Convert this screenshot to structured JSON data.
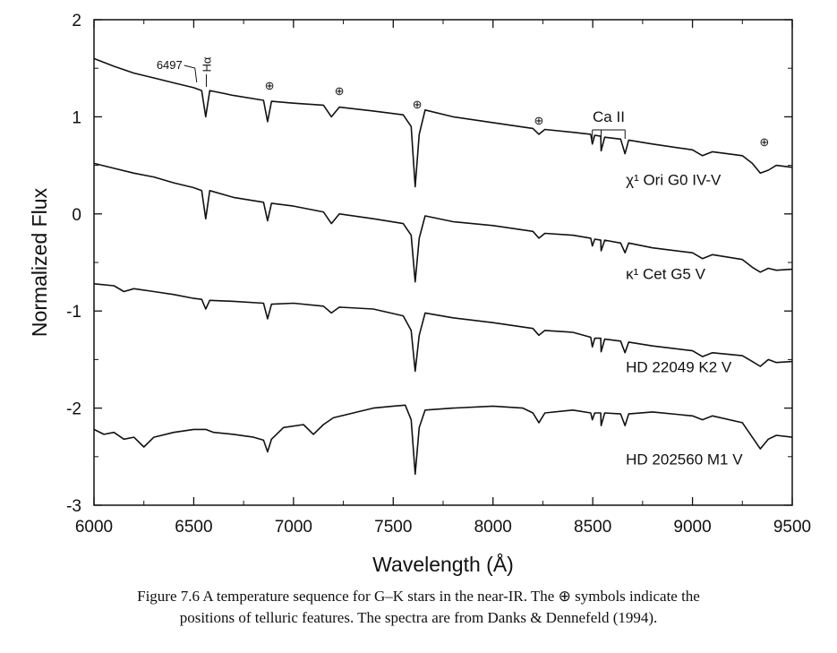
{
  "chart_data": {
    "type": "line",
    "xlabel": "Wavelength (Å)",
    "ylabel": "Normalized Flux",
    "xlim": [
      6000,
      9500
    ],
    "ylim": [
      -3,
      2
    ],
    "xticks": [
      "6000",
      "6500",
      "7000",
      "7500",
      "8000",
      "8500",
      "9000",
      "9500"
    ],
    "yticks": [
      "-3",
      "-2",
      "-1",
      "0",
      "1",
      "2"
    ],
    "grid": false,
    "legend": "none",
    "series": [
      {
        "name": "χ1 Ori  G0 IV-V",
        "label": "χ¹ Ori  G0 IV-V",
        "label_x": 8500,
        "label_y": 0.3,
        "points": [
          [
            6000,
            1.6
          ],
          [
            6100,
            1.52
          ],
          [
            6200,
            1.45
          ],
          [
            6300,
            1.4
          ],
          [
            6400,
            1.35
          ],
          [
            6500,
            1.3
          ],
          [
            6540,
            1.27
          ],
          [
            6560,
            1.0
          ],
          [
            6580,
            1.27
          ],
          [
            6700,
            1.22
          ],
          [
            6850,
            1.17
          ],
          [
            6870,
            0.95
          ],
          [
            6890,
            1.16
          ],
          [
            7000,
            1.14
          ],
          [
            7150,
            1.12
          ],
          [
            7190,
            1.0
          ],
          [
            7230,
            1.1
          ],
          [
            7400,
            1.06
          ],
          [
            7550,
            1.02
          ],
          [
            7590,
            0.9
          ],
          [
            7610,
            0.28
          ],
          [
            7630,
            0.82
          ],
          [
            7660,
            1.07
          ],
          [
            7800,
            1.0
          ],
          [
            8000,
            0.94
          ],
          [
            8200,
            0.88
          ],
          [
            8230,
            0.82
          ],
          [
            8260,
            0.87
          ],
          [
            8400,
            0.84
          ],
          [
            8490,
            0.82
          ],
          [
            8498,
            0.72
          ],
          [
            8510,
            0.81
          ],
          [
            8540,
            0.8
          ],
          [
            8542,
            0.65
          ],
          [
            8560,
            0.79
          ],
          [
            8640,
            0.77
          ],
          [
            8662,
            0.62
          ],
          [
            8680,
            0.76
          ],
          [
            8800,
            0.72
          ],
          [
            9000,
            0.66
          ],
          [
            9050,
            0.6
          ],
          [
            9100,
            0.64
          ],
          [
            9250,
            0.6
          ],
          [
            9300,
            0.52
          ],
          [
            9340,
            0.42
          ],
          [
            9380,
            0.45
          ],
          [
            9420,
            0.5
          ],
          [
            9500,
            0.48
          ]
        ]
      },
      {
        "name": "κ1 Cet  G5 V",
        "label": "κ¹ Cet  G5 V",
        "label_x": 8500,
        "label_y": -0.67,
        "points": [
          [
            6000,
            0.52
          ],
          [
            6100,
            0.47
          ],
          [
            6200,
            0.42
          ],
          [
            6300,
            0.38
          ],
          [
            6400,
            0.32
          ],
          [
            6500,
            0.27
          ],
          [
            6540,
            0.24
          ],
          [
            6560,
            -0.05
          ],
          [
            6580,
            0.24
          ],
          [
            6700,
            0.17
          ],
          [
            6850,
            0.12
          ],
          [
            6870,
            -0.07
          ],
          [
            6890,
            0.11
          ],
          [
            7000,
            0.08
          ],
          [
            7150,
            0.02
          ],
          [
            7190,
            -0.1
          ],
          [
            7230,
            0.0
          ],
          [
            7400,
            -0.05
          ],
          [
            7550,
            -0.1
          ],
          [
            7590,
            -0.22
          ],
          [
            7610,
            -0.7
          ],
          [
            7630,
            -0.25
          ],
          [
            7660,
            -0.02
          ],
          [
            7800,
            -0.08
          ],
          [
            8000,
            -0.12
          ],
          [
            8200,
            -0.18
          ],
          [
            8230,
            -0.25
          ],
          [
            8260,
            -0.2
          ],
          [
            8400,
            -0.22
          ],
          [
            8490,
            -0.25
          ],
          [
            8498,
            -0.33
          ],
          [
            8510,
            -0.26
          ],
          [
            8540,
            -0.27
          ],
          [
            8542,
            -0.38
          ],
          [
            8560,
            -0.27
          ],
          [
            8640,
            -0.3
          ],
          [
            8662,
            -0.4
          ],
          [
            8680,
            -0.3
          ],
          [
            8800,
            -0.35
          ],
          [
            9000,
            -0.4
          ],
          [
            9050,
            -0.46
          ],
          [
            9100,
            -0.42
          ],
          [
            9250,
            -0.47
          ],
          [
            9300,
            -0.55
          ],
          [
            9340,
            -0.6
          ],
          [
            9380,
            -0.56
          ],
          [
            9420,
            -0.58
          ],
          [
            9500,
            -0.57
          ]
        ]
      },
      {
        "name": "HD 22049  K2 V",
        "label": "HD 22049  K2 V",
        "label_x": 8500,
        "label_y": -1.63,
        "points": [
          [
            6000,
            -0.72
          ],
          [
            6100,
            -0.74
          ],
          [
            6150,
            -0.8
          ],
          [
            6200,
            -0.77
          ],
          [
            6300,
            -0.8
          ],
          [
            6400,
            -0.83
          ],
          [
            6500,
            -0.87
          ],
          [
            6540,
            -0.88
          ],
          [
            6560,
            -0.98
          ],
          [
            6580,
            -0.89
          ],
          [
            6700,
            -0.9
          ],
          [
            6850,
            -0.92
          ],
          [
            6870,
            -1.08
          ],
          [
            6890,
            -0.93
          ],
          [
            7000,
            -0.92
          ],
          [
            7150,
            -0.95
          ],
          [
            7190,
            -1.02
          ],
          [
            7230,
            -0.96
          ],
          [
            7400,
            -0.98
          ],
          [
            7550,
            -1.05
          ],
          [
            7590,
            -1.2
          ],
          [
            7610,
            -1.62
          ],
          [
            7630,
            -1.25
          ],
          [
            7660,
            -1.02
          ],
          [
            7800,
            -1.07
          ],
          [
            8000,
            -1.12
          ],
          [
            8200,
            -1.18
          ],
          [
            8230,
            -1.25
          ],
          [
            8260,
            -1.2
          ],
          [
            8400,
            -1.22
          ],
          [
            8490,
            -1.27
          ],
          [
            8498,
            -1.37
          ],
          [
            8510,
            -1.28
          ],
          [
            8540,
            -1.28
          ],
          [
            8542,
            -1.42
          ],
          [
            8560,
            -1.29
          ],
          [
            8640,
            -1.31
          ],
          [
            8662,
            -1.43
          ],
          [
            8680,
            -1.32
          ],
          [
            8800,
            -1.36
          ],
          [
            9000,
            -1.41
          ],
          [
            9050,
            -1.47
          ],
          [
            9100,
            -1.43
          ],
          [
            9250,
            -1.46
          ],
          [
            9300,
            -1.52
          ],
          [
            9340,
            -1.57
          ],
          [
            9380,
            -1.5
          ],
          [
            9420,
            -1.53
          ],
          [
            9500,
            -1.52
          ]
        ]
      },
      {
        "name": "HD 202560  M1 V",
        "label": "HD 202560  M1 V",
        "label_x": 8500,
        "label_y": -2.58,
        "points": [
          [
            6000,
            -2.22
          ],
          [
            6050,
            -2.27
          ],
          [
            6100,
            -2.25
          ],
          [
            6150,
            -2.32
          ],
          [
            6200,
            -2.3
          ],
          [
            6250,
            -2.4
          ],
          [
            6300,
            -2.3
          ],
          [
            6400,
            -2.25
          ],
          [
            6500,
            -2.22
          ],
          [
            6560,
            -2.22
          ],
          [
            6600,
            -2.25
          ],
          [
            6700,
            -2.27
          ],
          [
            6800,
            -2.3
          ],
          [
            6850,
            -2.33
          ],
          [
            6870,
            -2.45
          ],
          [
            6890,
            -2.32
          ],
          [
            6950,
            -2.2
          ],
          [
            7050,
            -2.17
          ],
          [
            7100,
            -2.27
          ],
          [
            7150,
            -2.17
          ],
          [
            7200,
            -2.1
          ],
          [
            7300,
            -2.05
          ],
          [
            7400,
            -2.0
          ],
          [
            7500,
            -1.98
          ],
          [
            7560,
            -1.97
          ],
          [
            7590,
            -2.12
          ],
          [
            7610,
            -2.68
          ],
          [
            7630,
            -2.2
          ],
          [
            7660,
            -2.02
          ],
          [
            7800,
            -2.0
          ],
          [
            8000,
            -1.98
          ],
          [
            8150,
            -2.0
          ],
          [
            8200,
            -2.05
          ],
          [
            8230,
            -2.15
          ],
          [
            8260,
            -2.05
          ],
          [
            8400,
            -2.02
          ],
          [
            8490,
            -2.05
          ],
          [
            8498,
            -2.12
          ],
          [
            8510,
            -2.05
          ],
          [
            8540,
            -2.05
          ],
          [
            8542,
            -2.18
          ],
          [
            8560,
            -2.05
          ],
          [
            8640,
            -2.06
          ],
          [
            8662,
            -2.18
          ],
          [
            8680,
            -2.06
          ],
          [
            8800,
            -2.04
          ],
          [
            9000,
            -2.08
          ],
          [
            9050,
            -2.12
          ],
          [
            9100,
            -2.08
          ],
          [
            9250,
            -2.15
          ],
          [
            9300,
            -2.3
          ],
          [
            9340,
            -2.42
          ],
          [
            9380,
            -2.32
          ],
          [
            9420,
            -2.28
          ],
          [
            9500,
            -2.3
          ]
        ]
      }
    ],
    "annotations": {
      "line_6497": {
        "text": "6497",
        "x": 6497
      },
      "halpha": {
        "text": "Hα",
        "x": 6563
      },
      "ca_ii": {
        "text": "Ca II",
        "x": [
          8498,
          8542,
          8662
        ]
      },
      "telluric_symbol": "⊕",
      "telluric_x": [
        6880,
        7230,
        7620,
        8230,
        9360
      ]
    }
  },
  "caption": {
    "line1": "Figure 7.6 A temperature sequence for G–K stars in the near-IR. The ⊕ symbols indicate the",
    "line2": "positions of telluric features. The spectra are from Danks & Dennefeld (1994)."
  }
}
